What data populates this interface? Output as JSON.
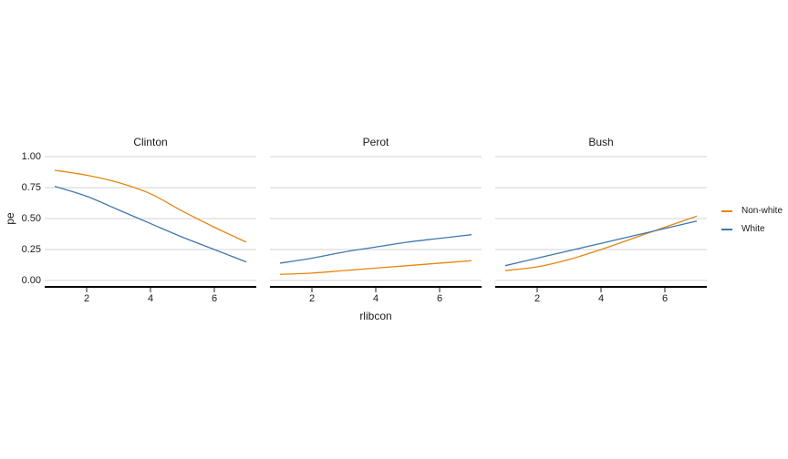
{
  "style": {
    "background": "#FFFFFF",
    "grid_color": "#D3D3D3",
    "axis_color": "#000000",
    "tick_color": "#222222",
    "text_color": "#1A1A1A",
    "nonwhite_color": "#E6860E",
    "white_color": "#3E78B0"
  },
  "chart_data": {
    "type": "line",
    "title": "",
    "xlabel": "rlibcon",
    "ylabel": "pe",
    "x": [
      1,
      2,
      3,
      4,
      5,
      6,
      7
    ],
    "xlim": [
      1,
      7
    ],
    "ylim": [
      0,
      1
    ],
    "x_ticks": [
      2,
      4,
      6
    ],
    "y_ticks": [
      0,
      0.25,
      0.5,
      0.75,
      1
    ],
    "y_tick_labels": [
      "0.00",
      "0.25",
      "0.50",
      "0.75",
      "1.00"
    ],
    "grid": "horizontal-major-only",
    "legend_position": "right",
    "facets": [
      {
        "label": "Clinton",
        "series": [
          {
            "name": "Non-white",
            "color": "#E6860E",
            "values": [
              0.89,
              0.85,
              0.79,
              0.7,
              0.56,
              0.43,
              0.31
            ]
          },
          {
            "name": "White",
            "color": "#3E78B0",
            "values": [
              0.76,
              0.68,
              0.57,
              0.46,
              0.35,
              0.25,
              0.15
            ]
          }
        ]
      },
      {
        "label": "Perot",
        "series": [
          {
            "name": "Non-white",
            "color": "#E6860E",
            "values": [
              0.05,
              0.06,
              0.08,
              0.1,
              0.12,
              0.14,
              0.16
            ]
          },
          {
            "name": "White",
            "color": "#3E78B0",
            "values": [
              0.14,
              0.18,
              0.23,
              0.27,
              0.31,
              0.34,
              0.37
            ]
          }
        ]
      },
      {
        "label": "Bush",
        "series": [
          {
            "name": "Non-white",
            "color": "#E6860E",
            "values": [
              0.08,
              0.11,
              0.17,
              0.25,
              0.34,
              0.43,
              0.52
            ]
          },
          {
            "name": "White",
            "color": "#3E78B0",
            "values": [
              0.12,
              0.18,
              0.24,
              0.3,
              0.36,
              0.42,
              0.48
            ]
          }
        ]
      }
    ],
    "legend": {
      "entries": [
        {
          "label": "Non-white",
          "color": "#E6860E"
        },
        {
          "label": "White",
          "color": "#3E78B0"
        }
      ]
    }
  }
}
